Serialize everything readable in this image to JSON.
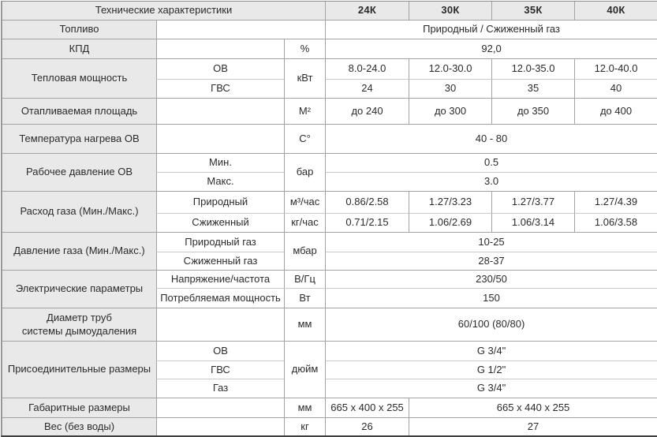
{
  "table": {
    "rows": [
      {
        "cells": [
          {
            "t": "Технические характеристики",
            "k": "title",
            "cs": 3
          },
          {
            "t": "24К",
            "k": "model"
          },
          {
            "t": "30К",
            "k": "model"
          },
          {
            "t": "35К",
            "k": "model"
          },
          {
            "t": "40К",
            "k": "model"
          }
        ]
      },
      {
        "cells": [
          {
            "t": "Топливо",
            "k": "label"
          },
          {
            "t": "",
            "k": "empty",
            "cs": 2
          },
          {
            "t": "Природный / Сжиженный газ",
            "k": "value",
            "cs": 4
          }
        ]
      },
      {
        "cells": [
          {
            "t": "КПД",
            "k": "label"
          },
          {
            "t": "",
            "k": "empty"
          },
          {
            "t": "%",
            "k": "unit"
          },
          {
            "t": "92,0",
            "k": "value",
            "cs": 4
          }
        ]
      },
      {
        "cells": [
          {
            "t": "Тепловая мощность",
            "k": "label",
            "rs": 2
          },
          {
            "t": "ОВ",
            "k": "sub"
          },
          {
            "t": "кВт",
            "k": "unit",
            "rs": 2
          },
          {
            "t": "8.0-24.0",
            "k": "value"
          },
          {
            "t": "12.0-30.0",
            "k": "value"
          },
          {
            "t": "12.0-35.0",
            "k": "value"
          },
          {
            "t": "12.0-40.0",
            "k": "value"
          }
        ]
      },
      {
        "cells": [
          {
            "t": "ГВС",
            "k": "sub"
          },
          {
            "t": "24",
            "k": "value"
          },
          {
            "t": "30",
            "k": "value"
          },
          {
            "t": "35",
            "k": "value"
          },
          {
            "t": "40",
            "k": "value"
          }
        ]
      },
      {
        "cells": [
          {
            "t": "Отапливаемая площадь",
            "k": "label"
          },
          {
            "t": "",
            "k": "empty"
          },
          {
            "t": "М²",
            "k": "unit"
          },
          {
            "t": "до 240",
            "k": "value"
          },
          {
            "t": "до 300",
            "k": "value"
          },
          {
            "t": "до 350",
            "k": "value"
          },
          {
            "t": "до 400",
            "k": "value"
          }
        ]
      },
      {
        "cells": [
          {
            "t": "Температура нагрева ОВ",
            "k": "label"
          },
          {
            "t": "",
            "k": "empty"
          },
          {
            "t": "С°",
            "k": "unit"
          },
          {
            "t": "40 - 80",
            "k": "value",
            "cs": 4
          }
        ]
      },
      {
        "cells": [
          {
            "t": "Рабочее давление ОВ",
            "k": "label",
            "rs": 2
          },
          {
            "t": "Мин.",
            "k": "sub"
          },
          {
            "t": "бар",
            "k": "unit",
            "rs": 2
          },
          {
            "t": "0.5",
            "k": "value",
            "cs": 4
          }
        ]
      },
      {
        "cells": [
          {
            "t": "Макс.",
            "k": "sub"
          },
          {
            "t": "3.0",
            "k": "value",
            "cs": 4
          }
        ]
      },
      {
        "cells": [
          {
            "t": "Расход газа (Мин./Макс.)",
            "k": "label",
            "rs": 2
          },
          {
            "t": "Природный",
            "k": "sub"
          },
          {
            "t": "м³/час",
            "k": "unit"
          },
          {
            "t": "0.86/2.58",
            "k": "value"
          },
          {
            "t": "1.27/3.23",
            "k": "value"
          },
          {
            "t": "1.27/3.77",
            "k": "value"
          },
          {
            "t": "1.27/4.39",
            "k": "value"
          }
        ]
      },
      {
        "cells": [
          {
            "t": "Сжиженный",
            "k": "sub"
          },
          {
            "t": "кг/час",
            "k": "unit"
          },
          {
            "t": "0.71/2.15",
            "k": "value"
          },
          {
            "t": "1.06/2.69",
            "k": "value"
          },
          {
            "t": "1.06/3.14",
            "k": "value"
          },
          {
            "t": "1.06/3.58",
            "k": "value"
          }
        ]
      },
      {
        "cells": [
          {
            "t": "Давление газа (Мин./Макс.)",
            "k": "label",
            "rs": 2
          },
          {
            "t": "Природный газ",
            "k": "sub"
          },
          {
            "t": "мбар",
            "k": "unit",
            "rs": 2
          },
          {
            "t": "10-25",
            "k": "value",
            "cs": 4
          }
        ]
      },
      {
        "cells": [
          {
            "t": "Сжиженный газ",
            "k": "sub"
          },
          {
            "t": "28-37",
            "k": "value",
            "cs": 4
          }
        ]
      },
      {
        "cells": [
          {
            "t": "Электрические параметры",
            "k": "label",
            "rs": 2
          },
          {
            "t": "Напряжение/частота",
            "k": "sub"
          },
          {
            "t": "В/Гц",
            "k": "unit"
          },
          {
            "t": "230/50",
            "k": "value",
            "cs": 4
          }
        ]
      },
      {
        "cells": [
          {
            "t": "Потребляемая мощность",
            "k": "sub"
          },
          {
            "t": "Вт",
            "k": "unit"
          },
          {
            "t": "150",
            "k": "value",
            "cs": 4
          }
        ]
      },
      {
        "cells": [
          {
            "t": "Диаметр труб\nсистемы дымоудаления",
            "k": "label"
          },
          {
            "t": "",
            "k": "empty"
          },
          {
            "t": "мм",
            "k": "unit"
          },
          {
            "t": "60/100 (80/80)",
            "k": "value",
            "cs": 4
          }
        ]
      },
      {
        "cells": [
          {
            "t": "Присоединительные размеры",
            "k": "label",
            "rs": 3
          },
          {
            "t": "ОВ",
            "k": "sub"
          },
          {
            "t": "дюйм",
            "k": "unit",
            "rs": 3
          },
          {
            "t": "G 3/4\"",
            "k": "value",
            "cs": 4
          }
        ]
      },
      {
        "cells": [
          {
            "t": "ГВС",
            "k": "sub"
          },
          {
            "t": "G 1/2\"",
            "k": "value",
            "cs": 4
          }
        ]
      },
      {
        "cells": [
          {
            "t": "Газ",
            "k": "sub"
          },
          {
            "t": "G 3/4\"",
            "k": "value",
            "cs": 4
          }
        ]
      },
      {
        "cells": [
          {
            "t": "Габаритные размеры",
            "k": "label"
          },
          {
            "t": "",
            "k": "empty"
          },
          {
            "t": "мм",
            "k": "unit"
          },
          {
            "t": "665 x 400 x 255",
            "k": "value"
          },
          {
            "t": "665 x 440 x 255",
            "k": "value",
            "cs": 3
          }
        ]
      },
      {
        "cells": [
          {
            "t": "Вес (без воды)",
            "k": "label"
          },
          {
            "t": "",
            "k": "empty"
          },
          {
            "t": "кг",
            "k": "unit"
          },
          {
            "t": "26",
            "k": "value"
          },
          {
            "t": "27",
            "k": "value",
            "cs": 3
          }
        ]
      }
    ]
  },
  "colors": {
    "header_bg": "#e9e9e9",
    "label_bg": "#e9e9e9",
    "border": "#a3a3a3",
    "border_light": "#c9c9c9",
    "border_outer": "#8c8c8c",
    "border_bottom": "#3f3f3f",
    "text": "#2b2b2b"
  }
}
